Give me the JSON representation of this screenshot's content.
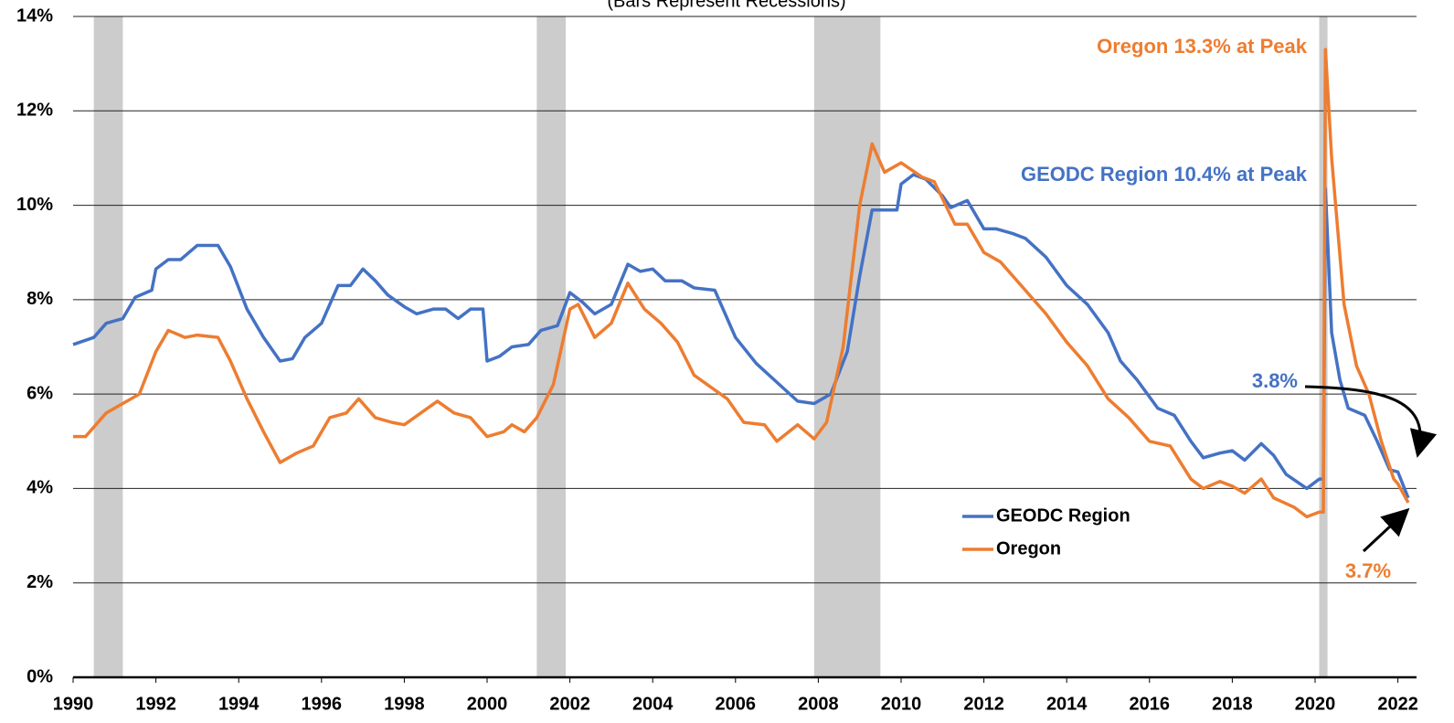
{
  "chart_data": {
    "type": "line",
    "subtitle": "(Bars Represent Recessions)",
    "xlim": [
      1990,
      2022.45
    ],
    "xticks": [
      1990,
      1992,
      1994,
      1996,
      1998,
      2000,
      2002,
      2004,
      2006,
      2008,
      2010,
      2012,
      2014,
      2016,
      2018,
      2020,
      2022
    ],
    "ylim": [
      0,
      14
    ],
    "yticks": [
      {
        "value": 0,
        "label": "0%"
      },
      {
        "value": 2,
        "label": "2%"
      },
      {
        "value": 4,
        "label": "4%"
      },
      {
        "value": 6,
        "label": "6%"
      },
      {
        "value": 8,
        "label": "8%"
      },
      {
        "value": 10,
        "label": "10%"
      },
      {
        "value": 12,
        "label": "12%"
      },
      {
        "value": 14,
        "label": "14%"
      }
    ],
    "grid": true,
    "recessions": [
      [
        1990.5,
        1991.2
      ],
      [
        2001.2,
        2001.9
      ],
      [
        2007.9,
        2009.5
      ],
      [
        2020.1,
        2020.3
      ]
    ],
    "recession_color": "#cccccc",
    "legend": "lower right",
    "series": [
      {
        "name": "GEODC Region",
        "color": "#4472c4",
        "x": [
          1990,
          1990.5,
          1990.8,
          1991.2,
          1991.5,
          1991.9,
          1992.0,
          1992.3,
          1992.6,
          1993.0,
          1993.5,
          1993.8,
          1994.2,
          1994.6,
          1995.0,
          1995.3,
          1995.6,
          1996.0,
          1996.4,
          1996.7,
          1997.0,
          1997.3,
          1997.6,
          1998.0,
          1998.3,
          1998.7,
          1999.0,
          1999.3,
          1999.6,
          1999.9,
          2000.0,
          2000.3,
          2000.6,
          2001.0,
          2001.3,
          2001.7,
          2002.0,
          2002.3,
          2002.6,
          2003.0,
          2003.4,
          2003.7,
          2004.0,
          2004.3,
          2004.7,
          2005.0,
          2005.5,
          2005.8,
          2006.0,
          2006.5,
          2007.0,
          2007.5,
          2007.9,
          2008.3,
          2008.7,
          2009.0,
          2009.3,
          2009.6,
          2009.9,
          2010.0,
          2010.3,
          2010.6,
          2011.0,
          2011.2,
          2011.6,
          2012.0,
          2012.3,
          2012.7,
          2013.0,
          2013.5,
          2014.0,
          2014.5,
          2015.0,
          2015.3,
          2015.7,
          2016.2,
          2016.6,
          2017.0,
          2017.3,
          2017.7,
          2018.0,
          2018.3,
          2018.7,
          2019.0,
          2019.3,
          2019.8,
          2020.1,
          2020.2,
          2020.25,
          2020.4,
          2020.6,
          2020.8,
          2021.2,
          2021.5,
          2021.8,
          2022.0,
          2022.25
        ],
        "values": [
          7.05,
          7.2,
          7.5,
          7.6,
          8.05,
          8.2,
          8.65,
          8.85,
          8.85,
          9.15,
          9.15,
          8.7,
          7.8,
          7.2,
          6.7,
          6.75,
          7.2,
          7.5,
          8.3,
          8.3,
          8.65,
          8.4,
          8.1,
          7.85,
          7.7,
          7.8,
          7.8,
          7.6,
          7.8,
          7.8,
          6.7,
          6.8,
          7.0,
          7.05,
          7.35,
          7.45,
          8.15,
          7.95,
          7.7,
          7.9,
          8.75,
          8.6,
          8.65,
          8.4,
          8.4,
          8.25,
          8.2,
          7.6,
          7.2,
          6.65,
          6.25,
          5.85,
          5.8,
          6.0,
          6.9,
          8.5,
          9.9,
          9.9,
          9.9,
          10.45,
          10.65,
          10.55,
          10.2,
          9.95,
          10.1,
          9.5,
          9.5,
          9.4,
          9.3,
          8.9,
          8.3,
          7.9,
          7.3,
          6.7,
          6.3,
          5.7,
          5.55,
          5.0,
          4.65,
          4.75,
          4.8,
          4.6,
          4.95,
          4.7,
          4.3,
          4.0,
          4.2,
          4.2,
          10.35,
          7.3,
          6.3,
          5.7,
          5.55,
          5.0,
          4.4,
          4.35,
          3.8
        ]
      },
      {
        "name": "Oregon",
        "color": "#ed7d31",
        "x": [
          1990,
          1990.3,
          1990.8,
          1991.2,
          1991.6,
          1992.0,
          1992.3,
          1992.7,
          1993.0,
          1993.5,
          1993.8,
          1994.2,
          1994.6,
          1995.0,
          1995.4,
          1995.8,
          1996.2,
          1996.6,
          1996.9,
          1997.3,
          1997.7,
          1998.0,
          1998.4,
          1998.8,
          1999.2,
          1999.6,
          2000.0,
          2000.4,
          2000.6,
          2000.9,
          2001.2,
          2001.6,
          2002.0,
          2002.2,
          2002.6,
          2003.0,
          2003.4,
          2003.8,
          2004.2,
          2004.6,
          2005.0,
          2005.4,
          2005.8,
          2006.2,
          2006.7,
          2007.0,
          2007.5,
          2007.9,
          2008.2,
          2008.6,
          2009.0,
          2009.3,
          2009.6,
          2010.0,
          2010.5,
          2010.8,
          2011.3,
          2011.6,
          2012.0,
          2012.4,
          2013.0,
          2013.5,
          2014.0,
          2014.5,
          2015.0,
          2015.5,
          2016.0,
          2016.5,
          2017.0,
          2017.3,
          2017.7,
          2018.0,
          2018.3,
          2018.7,
          2019.0,
          2019.5,
          2019.8,
          2020.1,
          2020.2,
          2020.25,
          2020.4,
          2020.7,
          2021.0,
          2021.3,
          2021.6,
          2021.9,
          2022.0,
          2022.25
        ],
        "values": [
          5.1,
          5.1,
          5.6,
          5.8,
          6.0,
          6.9,
          7.35,
          7.2,
          7.25,
          7.2,
          6.7,
          5.9,
          5.2,
          4.55,
          4.75,
          4.9,
          5.5,
          5.6,
          5.9,
          5.5,
          5.4,
          5.35,
          5.6,
          5.85,
          5.6,
          5.5,
          5.1,
          5.2,
          5.35,
          5.2,
          5.5,
          6.2,
          7.8,
          7.9,
          7.2,
          7.5,
          8.35,
          7.8,
          7.5,
          7.1,
          6.4,
          6.15,
          5.9,
          5.4,
          5.35,
          5.0,
          5.35,
          5.05,
          5.4,
          7.0,
          10.0,
          11.3,
          10.7,
          10.9,
          10.6,
          10.5,
          9.6,
          9.6,
          9.0,
          8.8,
          8.2,
          7.7,
          7.1,
          6.6,
          5.9,
          5.5,
          5.0,
          4.9,
          4.2,
          4.0,
          4.15,
          4.05,
          3.9,
          4.2,
          3.8,
          3.6,
          3.4,
          3.5,
          3.5,
          13.3,
          11.0,
          7.9,
          6.6,
          6.0,
          5.0,
          4.2,
          4.1,
          3.7
        ]
      }
    ],
    "annotations": [
      "Oregon 13.3% at Peak",
      "GEODC Region 10.4% at Peak",
      "3.8%",
      "3.7%"
    ]
  }
}
